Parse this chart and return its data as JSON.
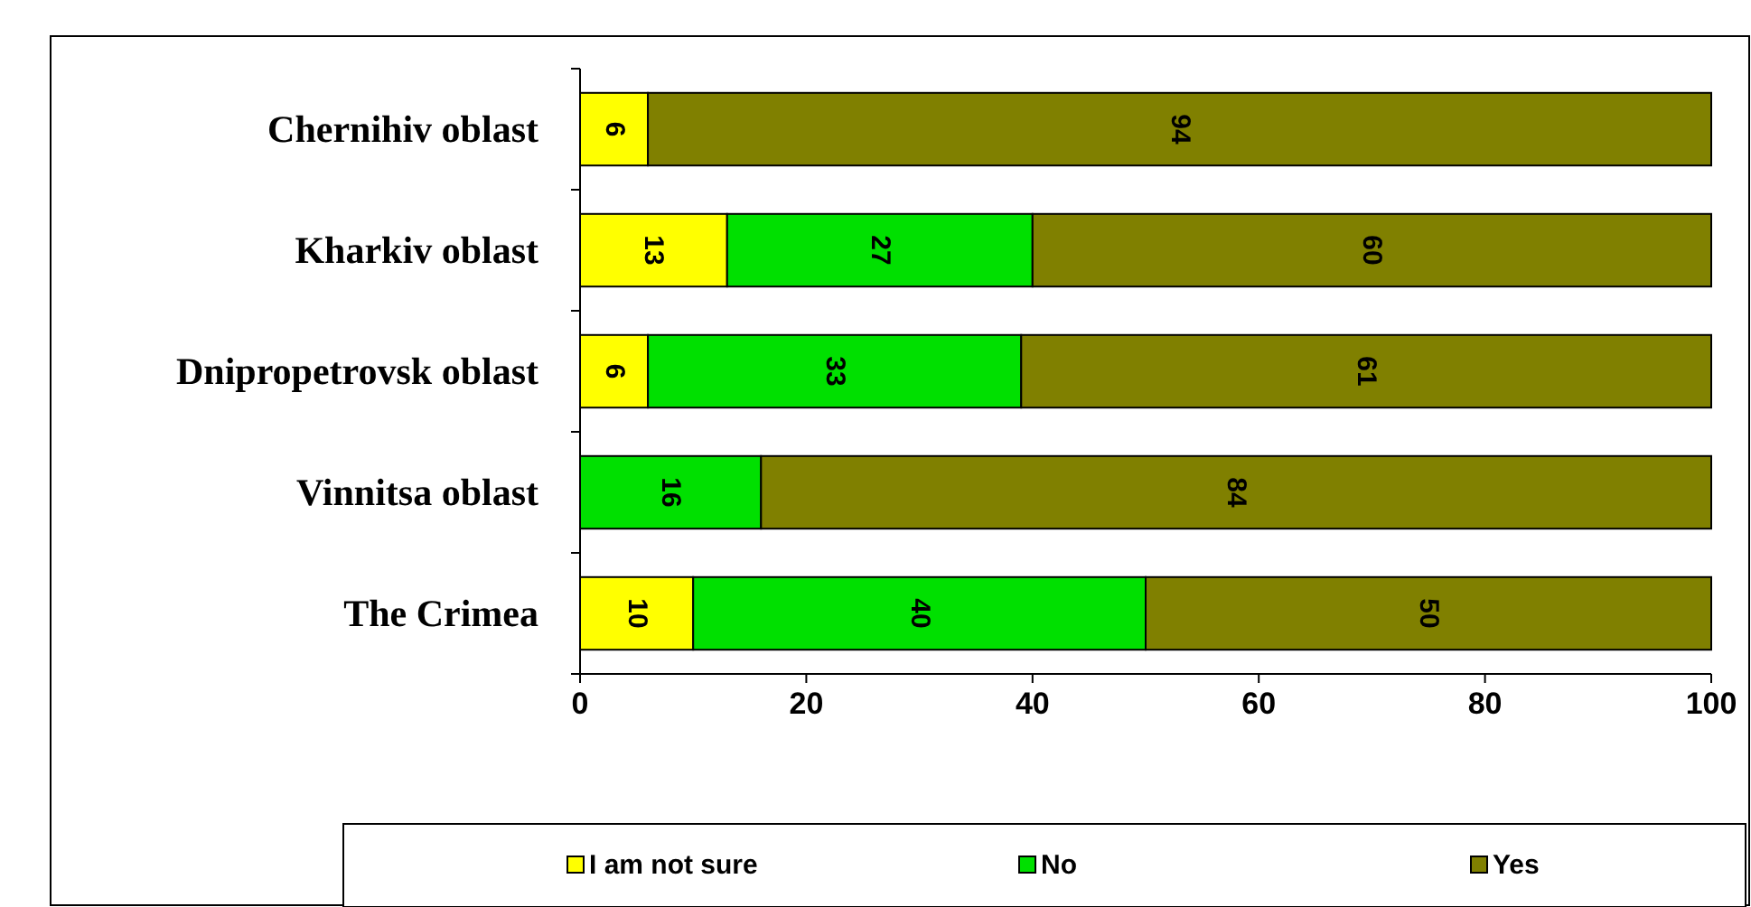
{
  "chart_data": {
    "type": "bar",
    "orientation": "horizontal",
    "stacked": true,
    "categories": [
      "Chernihiv oblast",
      "Kharkiv oblast",
      "Dnipropetrovsk oblast",
      "Vinnitsa oblast",
      "The Crimea"
    ],
    "series": [
      {
        "name": "I am not sure",
        "color": "#ffff00",
        "values": [
          6,
          13,
          6,
          null,
          10
        ]
      },
      {
        "name": "No",
        "color": "#00e000",
        "values": [
          null,
          27,
          33,
          16,
          40
        ]
      },
      {
        "name": "Yes",
        "color": "#808000",
        "values": [
          94,
          60,
          61,
          84,
          50
        ]
      }
    ],
    "xlim": [
      0,
      100
    ],
    "xticks": [
      0,
      20,
      40,
      60,
      80,
      100
    ],
    "data_labels": true,
    "legend": "bottom",
    "grid": false
  }
}
